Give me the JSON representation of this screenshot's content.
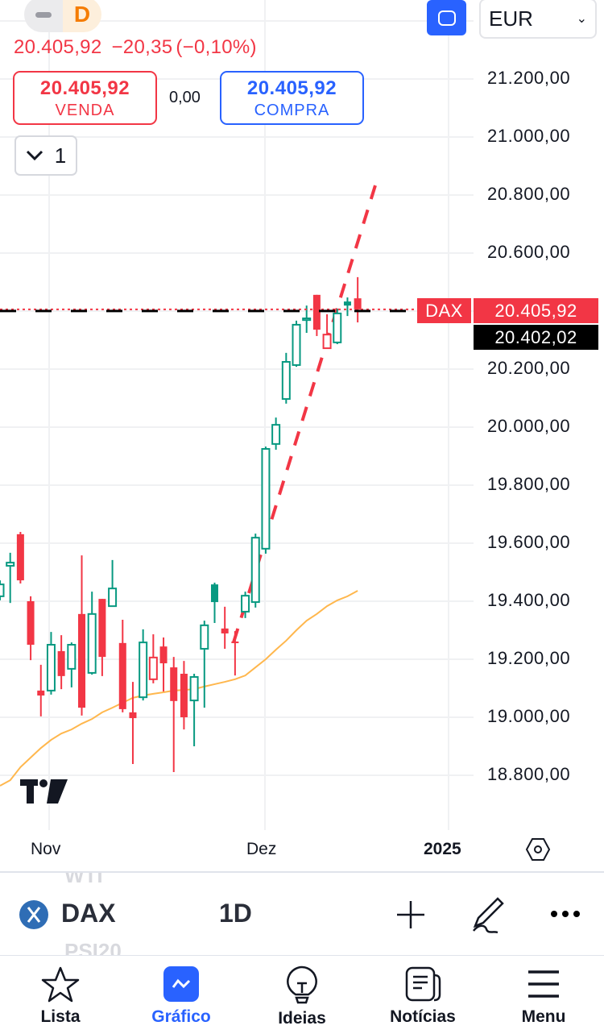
{
  "header": {
    "interval_badge": "D",
    "last_price": "20.405,92",
    "change": "−20,35",
    "change_pct": "(−0,10%)",
    "sell": {
      "value": "20.405,92",
      "label": "VENDA"
    },
    "spread": "0,00",
    "buy": {
      "value": "20.405,92",
      "label": "COMPRA"
    },
    "quantity": "1",
    "currency": "EUR"
  },
  "chart_data": {
    "type": "candlestick",
    "symbol": "DAX",
    "interval": "1D",
    "y_ticks": [
      "21.200,00",
      "21.000,00",
      "20.800,00",
      "20.600,00",
      "20.200,00",
      "20.000,00",
      "19.800,00",
      "19.600,00",
      "19.400,00",
      "19.200,00",
      "19.000,00",
      "18.800,00"
    ],
    "y_tick_values": [
      21200,
      21000,
      20800,
      20600,
      20200,
      20000,
      19800,
      19600,
      19400,
      19200,
      19000,
      18800
    ],
    "x_ticks": [
      "Nov",
      "Dez",
      "2025"
    ],
    "ylim": [
      18600,
      21470
    ],
    "grid": true,
    "candles": [
      [
        19417,
        19472,
        19403,
        19458
      ],
      [
        19522,
        19567,
        19394,
        19533
      ],
      [
        19631,
        19639,
        19461,
        19472
      ],
      [
        19400,
        19417,
        19197,
        19250
      ],
      [
        19092,
        19181,
        19003,
        19075
      ],
      [
        19092,
        19294,
        19078,
        19250
      ],
      [
        19228,
        19283,
        19097,
        19142
      ],
      [
        19167,
        19258,
        19103,
        19250
      ],
      [
        19356,
        19558,
        19006,
        19033
      ],
      [
        19153,
        19433,
        19147,
        19356
      ],
      [
        19408,
        19408,
        19142,
        19208
      ],
      [
        19383,
        19542,
        19381,
        19444
      ],
      [
        19256,
        19336,
        19017,
        19028
      ],
      [
        19017,
        19122,
        18839,
        18997
      ],
      [
        19069,
        19303,
        19058,
        19258
      ],
      [
        19131,
        19286,
        19117,
        19206
      ],
      [
        19244,
        19275,
        19089,
        19186
      ],
      [
        19172,
        19208,
        18811,
        19056
      ],
      [
        19150,
        19194,
        18958,
        19000
      ],
      [
        19058,
        19150,
        18900,
        19139
      ],
      [
        19236,
        19333,
        19033,
        19317
      ],
      [
        19458,
        19464,
        19325,
        19397
      ],
      [
        19306,
        19381,
        19236,
        19289
      ],
      [
        19261,
        19297,
        19144,
        19258
      ],
      [
        19364,
        19433,
        19342,
        19419
      ],
      [
        19397,
        19633,
        19378,
        19619
      ],
      [
        19581,
        19933,
        19564,
        19925
      ],
      [
        19942,
        20033,
        19922,
        20008
      ],
      [
        20097,
        20256,
        20081,
        20225
      ],
      [
        20214,
        20367,
        20208,
        20353
      ],
      [
        20369,
        20419,
        20325,
        20375
      ],
      [
        20456,
        20456,
        20314,
        20336
      ],
      [
        20272,
        20389,
        20272,
        20319
      ],
      [
        20292,
        20408,
        20286,
        20392
      ],
      [
        20433,
        20447,
        20383,
        20419
      ],
      [
        20444,
        20517,
        20361,
        20405.92
      ]
    ],
    "moving_average": [
      18764,
      18783,
      18828,
      18861,
      18894,
      18922,
      18944,
      18958,
      18978,
      18994,
      19017,
      19033,
      19050,
      19067,
      19075,
      19081,
      19086,
      19092,
      19094,
      19097,
      19106,
      19114,
      19122,
      19131,
      19144,
      19172,
      19200,
      19233,
      19264,
      19300,
      19333,
      19356,
      19383,
      19403,
      19417,
      19436
    ],
    "trendline": {
      "from_price": 19258,
      "to_price": 20833
    },
    "last_price": {
      "value": 20405.92,
      "label": "20.405,92",
      "symbol_tag": "DAX"
    },
    "secondary_price": {
      "value": 20402.02,
      "label": "20.402,02"
    }
  },
  "colors": {
    "up": "#089981",
    "down": "#F23645",
    "ma": "#FFB74D",
    "accent": "#2962FF",
    "grid": "#F0F1F3"
  },
  "toolbar": {
    "symbol": "DAX",
    "interval": "1D",
    "ghost_above": "WTI",
    "ghost_below": "PSI20"
  },
  "tabs": [
    {
      "label": "Lista",
      "icon": "star-icon"
    },
    {
      "label": "Gráfico",
      "icon": "chart-icon",
      "active": true
    },
    {
      "label": "Ideias",
      "icon": "lightbulb-icon"
    },
    {
      "label": "Notícias",
      "icon": "newspaper-icon"
    },
    {
      "label": "Menu",
      "icon": "hamburger-icon"
    }
  ]
}
